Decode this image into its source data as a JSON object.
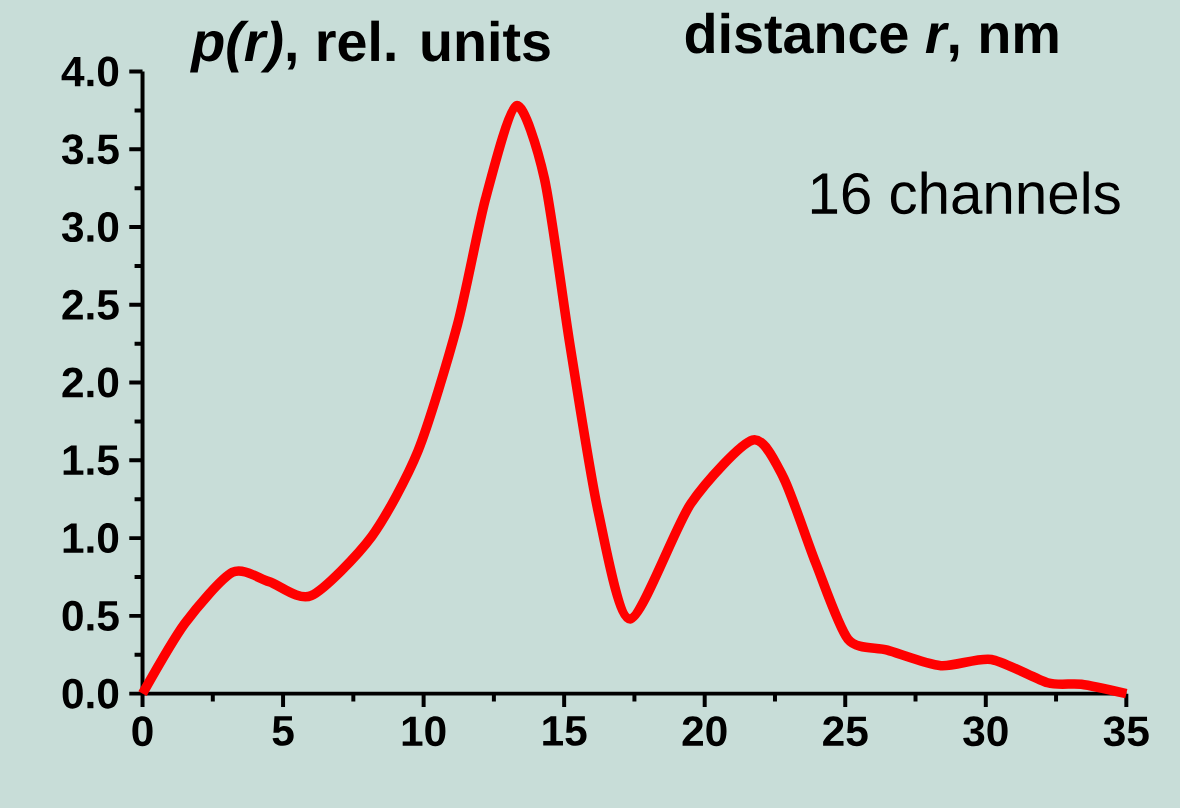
{
  "chart_data": {
    "type": "line",
    "xlabel": "distance *r*, nm",
    "ylabel": "*p(r)*, rel. units",
    "annotations": [
      "16 channels"
    ],
    "x": [
      0,
      1.5,
      3.2,
      4.5,
      6.0,
      8.15,
      9.8,
      11.2,
      12.2,
      13.3,
      14.3,
      15.2,
      16.2,
      17.35,
      19.5,
      21.7,
      22.8,
      23.95,
      25.1,
      26.5,
      28.4,
      30.2,
      32.2,
      33.4,
      35
    ],
    "series": [
      {
        "color": "#ff0000",
        "values": [
          0,
          0.45,
          0.78,
          0.72,
          0.63,
          1.01,
          1.56,
          2.37,
          3.18,
          3.78,
          3.31,
          2.25,
          1.18,
          0.48,
          1.22,
          1.63,
          1.39,
          0.84,
          0.35,
          0.28,
          0.18,
          0.22,
          0.07,
          0.06,
          0
        ]
      }
    ],
    "xlim": [
      0,
      35
    ],
    "ylim": [
      0,
      4
    ],
    "xticks": [
      0,
      5,
      10,
      15,
      20,
      25,
      30,
      35
    ],
    "yticks": [
      {
        "value": 0,
        "label": "0.0"
      },
      {
        "value": 0.5,
        "label": "0.5"
      },
      {
        "value": 1,
        "label": "1.0"
      },
      {
        "value": 1.5,
        "label": "1.5"
      },
      {
        "value": 2,
        "label": "2.0"
      },
      {
        "value": 2.5,
        "label": "2.5"
      },
      {
        "value": 3,
        "label": "3.0"
      },
      {
        "value": 3.5,
        "label": "3.5"
      },
      {
        "value": 4,
        "label": "4.0"
      }
    ],
    "marker": "none",
    "line_style": "solid"
  }
}
